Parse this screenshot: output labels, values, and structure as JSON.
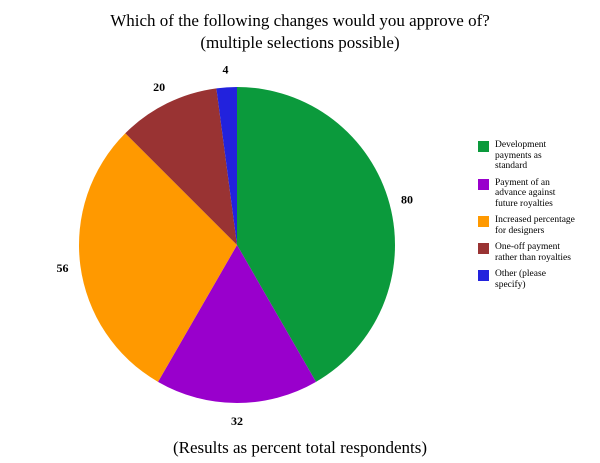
{
  "chart_data": {
    "type": "pie",
    "title": "Which of the following changes would you approve of?",
    "subtitle": "(multiple selections possible)",
    "note": "(Results as percent total respondents)",
    "categories": [
      "Development payments as standard",
      "Payment of an advance against future royalties",
      "Increased percentage for designers",
      "One-off payment rather than royalties",
      "Other (please specify)"
    ],
    "values": [
      80,
      32,
      56,
      20,
      4
    ],
    "colors": [
      "#0b9a3c",
      "#9900cc",
      "#ff9900",
      "#993333",
      "#2222dd"
    ],
    "legend": "right"
  }
}
